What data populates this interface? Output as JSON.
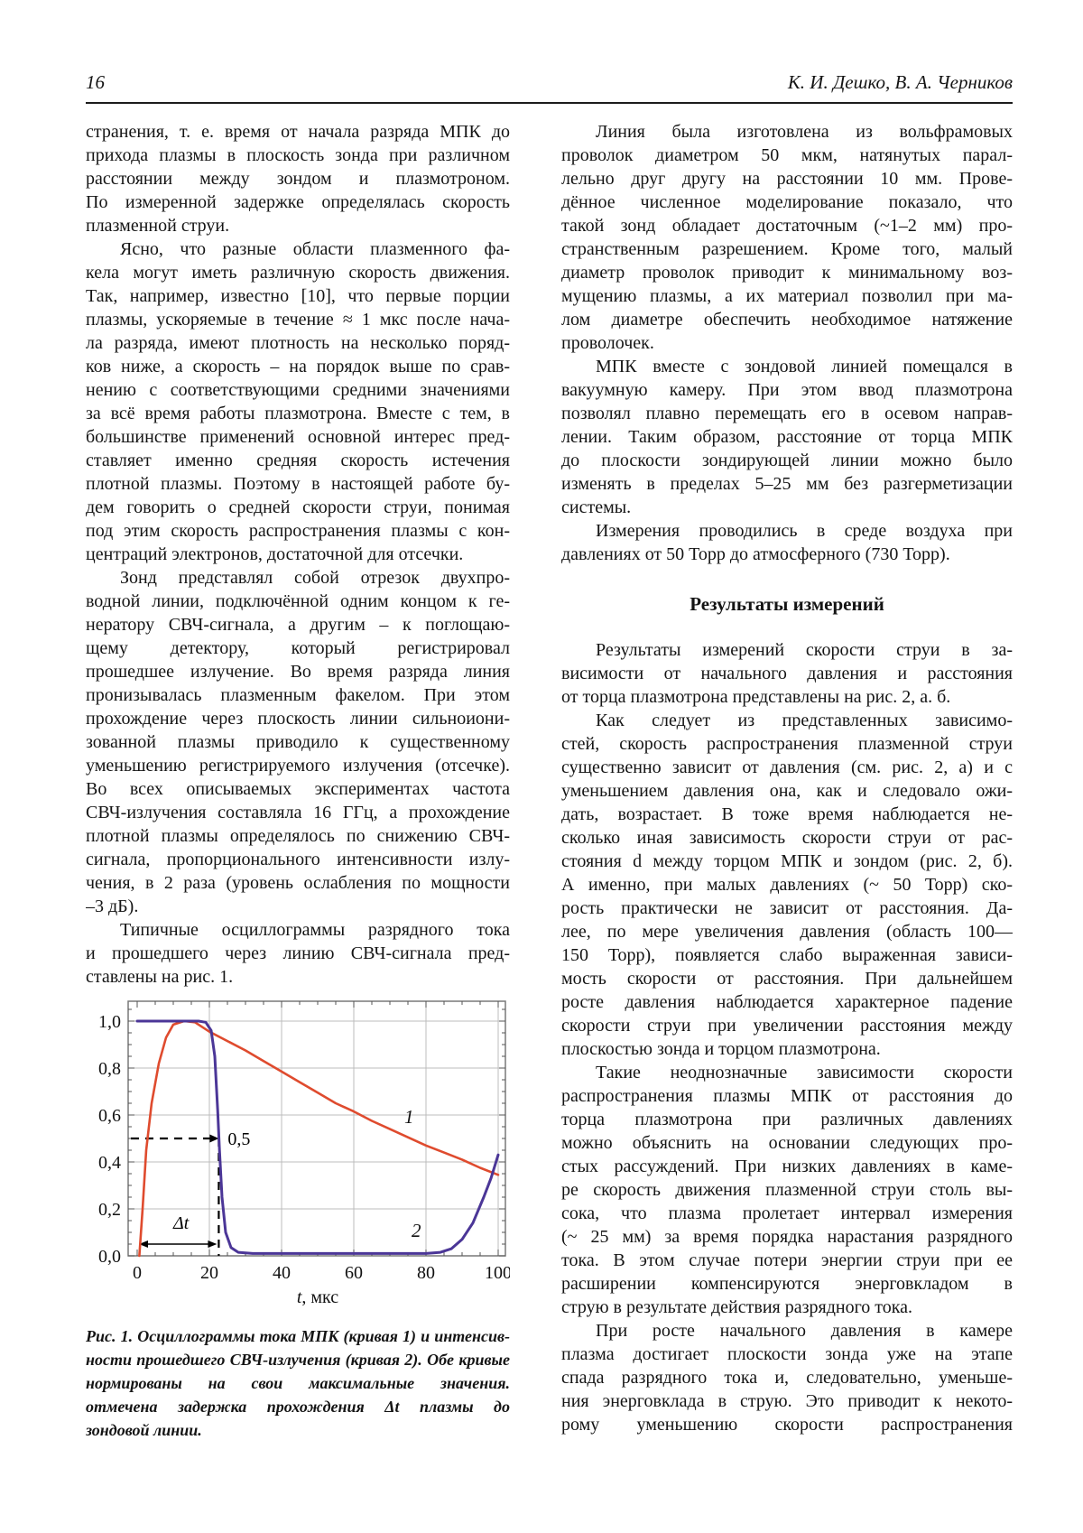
{
  "header": {
    "page_number": "16",
    "authors": "К. И. Дешко, В. А. Черников"
  },
  "left_column": {
    "paragraphs": [
      {
        "indent": false,
        "lines": [
          "странения, т. е. время от начала разряда МПК до",
          "прихода плазмы в плоскость зонда при различном",
          "расстоянии между зондом и плазмотроном.",
          "По измеренной задержке определялась скорость",
          "плазменной струи."
        ]
      },
      {
        "indent": true,
        "lines": [
          "Ясно, что разные области плазменного фа-",
          "кела могут иметь различную скорость движения.",
          "Так, например, известно [10], что первые порции",
          "плазмы, ускоряемые в течение ≈ 1 мкс после нача-",
          "ла разряда, имеют плотность на несколько поряд-",
          "ков ниже, а скорость – на порядок выше по срав-",
          "нению с соответствующими средними значениями",
          "за всё время работы плазмотрона. Вместе с тем, в",
          "большинстве применений основной интерес пред-",
          "ставляет именно средняя скорость истечения",
          "плотной плазмы. Поэтому в настоящей работе бу-",
          "дем говорить о средней скорости струи, понимая",
          "под этим скорость распространения плазмы с кон-",
          "центраций электронов, достаточной для отсечки."
        ]
      },
      {
        "indent": true,
        "lines": [
          "Зонд представлял собой отрезок двухпро-",
          "водной линии, подключённой одним концом к ге-",
          "нератору СВЧ-сигнала, а другим – к поглощаю-",
          "щему детектору, который регистрировал",
          "прошедшее излучение. Во время разряда линия",
          "пронизывалась плазменным факелом. При этом",
          "прохождение через плоскость линии сильноиони-",
          "зованной плазмы приводило к существенному",
          "уменьшению регистрируемого излучения (отсечке).",
          "Во всех описываемых экспериментах частота",
          "СВЧ-излучения составляла 16 ГГц, а прохождение",
          "плотной плазмы определялось по снижению СВЧ-",
          "сигнала, пропорционального интенсивности излу-",
          "чения, в 2 раза (уровень ослабления по мощности",
          "–3 дБ)."
        ]
      },
      {
        "indent": true,
        "lines": [
          "Типичные осциллограммы разрядного тока",
          "и прошедшего через линию СВЧ-сигнала пред-",
          "ставлены на рис. 1."
        ]
      }
    ]
  },
  "figure": {
    "caption_lines": [
      "Рис. 1. Осциллограммы тока МПК (кривая 1) и интенсив-",
      "ности прошедшего СВЧ-излучения (кривая 2). Обе кривые",
      "нормированы на свои максимальные значения. Пунктиром",
      "отмечена задержка прохождения Δt плазмы до плоскости",
      "зондовой линии."
    ]
  },
  "chart_data": {
    "type": "line",
    "title": "",
    "xlabel_var": "t",
    "xlabel_unit": ", мкс",
    "ylabel": "",
    "xlim": [
      -2.5,
      102
    ],
    "ylim": [
      0,
      1.085
    ],
    "grid": true,
    "legend_position": "none",
    "x_ticks": [
      0,
      20,
      40,
      60,
      80,
      100
    ],
    "x_tick_labels": [
      "0",
      "20",
      "40",
      "60",
      "80",
      "100"
    ],
    "y_ticks": [
      0,
      0.2,
      0.4,
      0.6,
      0.8,
      1.0
    ],
    "y_tick_labels": [
      "0,0",
      "0,2",
      "0,4",
      "0,6",
      "0,8",
      "1,0"
    ],
    "frame_color": "#787878",
    "grid_color": "#bcbcbc",
    "series": [
      {
        "name": "1",
        "label": "1",
        "color": "#df4b2e",
        "width": 2.6,
        "label_pos": [
          74,
          0.565
        ],
        "points": [
          [
            0.6,
            0
          ],
          [
            1.5,
            0.2
          ],
          [
            2.5,
            0.45
          ],
          [
            4,
            0.65
          ],
          [
            6,
            0.82
          ],
          [
            8,
            0.93
          ],
          [
            10,
            0.985
          ],
          [
            13,
            1.0
          ],
          [
            16,
            0.995
          ],
          [
            20,
            0.955
          ],
          [
            25,
            0.915
          ],
          [
            30,
            0.875
          ],
          [
            35,
            0.83
          ],
          [
            40,
            0.785
          ],
          [
            45,
            0.74
          ],
          [
            50,
            0.695
          ],
          [
            55,
            0.65
          ],
          [
            60,
            0.615
          ],
          [
            65,
            0.575
          ],
          [
            70,
            0.54
          ],
          [
            75,
            0.505
          ],
          [
            80,
            0.47
          ],
          [
            85,
            0.44
          ],
          [
            90,
            0.41
          ],
          [
            95,
            0.375
          ],
          [
            100,
            0.345
          ]
        ]
      },
      {
        "name": "2",
        "label": "2",
        "color": "#4b3697",
        "width": 3,
        "label_pos": [
          76,
          0.08
        ],
        "points": [
          [
            0,
            1.0
          ],
          [
            17,
            1.0
          ],
          [
            19,
            0.995
          ],
          [
            20.5,
            0.96
          ],
          [
            21.5,
            0.85
          ],
          [
            22.3,
            0.62
          ],
          [
            22.8,
            0.45
          ],
          [
            23.5,
            0.25
          ],
          [
            24.5,
            0.1
          ],
          [
            26,
            0.035
          ],
          [
            28,
            0.015
          ],
          [
            32,
            0.01
          ],
          [
            80,
            0.01
          ],
          [
            84,
            0.015
          ],
          [
            87,
            0.03
          ],
          [
            90,
            0.07
          ],
          [
            93,
            0.14
          ],
          [
            96,
            0.25
          ],
          [
            98,
            0.33
          ],
          [
            100,
            0.43
          ]
        ]
      }
    ],
    "annotations": {
      "half_level": 0.5,
      "half_level_label": "0,5",
      "crossing_x": 22.6,
      "delay_label": "Δt",
      "delay_arrow_y": 0.05,
      "delay_label_pos": [
        10,
        0.115
      ]
    }
  },
  "right_column": {
    "blocks": [
      {
        "indent": true,
        "lines": [
          "Линия была изготовлена из вольфрамовых",
          "проволок диаметром 50 мкм, натянутых парал-",
          "лельно друг другу на расстоянии 10 мм. Прове-",
          "дённое численное моделирование показало, что",
          "такой зонд обладает достаточным (~1–2 мм) про-",
          "странственным разрешением. Кроме того, малый",
          "диаметр проволок приводит к минимальному воз-",
          "мущению плазмы, а их материал позволил при ма-",
          "лом диаметре обеспечить необходимое натяжение",
          "проволочек."
        ]
      },
      {
        "indent": true,
        "lines": [
          "МПК вместе с зондовой линией помещался в",
          "вакуумную камеру. При этом ввод плазмотрона",
          "позволял плавно перемещать его в осевом направ-",
          "лении. Таким образом, расстояние от торца МПК",
          "до плоскости зондирующей линии можно было",
          "изменять в пределах 5–25 мм без разгерметизации",
          "системы."
        ]
      },
      {
        "indent": true,
        "lines": [
          "Измерения проводились в среде воздуха при",
          "давлениях от 50 Торр до атмосферного (730 Торр)."
        ]
      },
      {
        "heading": "Результаты измерений"
      },
      {
        "indent": true,
        "lines": [
          "Результаты измерений скорости струи в за-",
          "висимости от начального давления и расстояния",
          "от торца плазмотрона представлены на рис. 2, а. б."
        ]
      },
      {
        "indent": true,
        "lines": [
          "Как следует из представленных зависимо-",
          "стей, скорость распространения плазменной струи",
          "существенно зависит от давления (см. рис. 2, а) и с",
          "уменьшением давления она, как и следовало ожи-",
          "дать, возрастает. В тоже время наблюдается не-",
          "сколько иная зависимость скорости струи от рас-",
          "стояния d между торцом МПК и зондом (рис. 2, б).",
          "А именно, при малых давлениях (~ 50 Торр) ско-",
          "рость практически не зависит от расстояния. Да-",
          "лее, по мере увеличения давления (область 100—",
          "150 Торр), появляется слабо выраженная зависи-",
          "мость скорости от расстояния. При дальнейшем",
          "росте давления наблюдается характерное падение",
          "скорости струи при увеличении расстояния между",
          "плоскостью зонда и торцом плазмотрона."
        ]
      },
      {
        "indent": true,
        "lines": [
          "Такие неоднозначные зависимости скорости",
          "распространения плазмы МПК от расстояния до",
          "торца плазмотрона при различных давлениях",
          "можно объяснить на основании следующих про-",
          "стых рассуждений. При низких давлениях в каме-",
          "ре скорость движения плазменной струи столь вы-",
          "сока, что плазма пролетает интервал измерения",
          "(~ 25 мм) за время порядка нарастания разрядного",
          "тока. В этом случае потери энергии струи при ее",
          "расширении компенсируются энерговкладом в",
          "струю в результате действия разрядного тока."
        ]
      },
      {
        "indent": true,
        "flush_last": true,
        "lines": [
          "При росте начального давления в камере",
          "плазма достигает плоскости зонда уже на этапе",
          "спада разрядного тока и, следовательно, уменьше-",
          "ния энерговклада в струю. Это приводит к некото-",
          "рому уменьшению скорости распространения"
        ]
      }
    ]
  }
}
